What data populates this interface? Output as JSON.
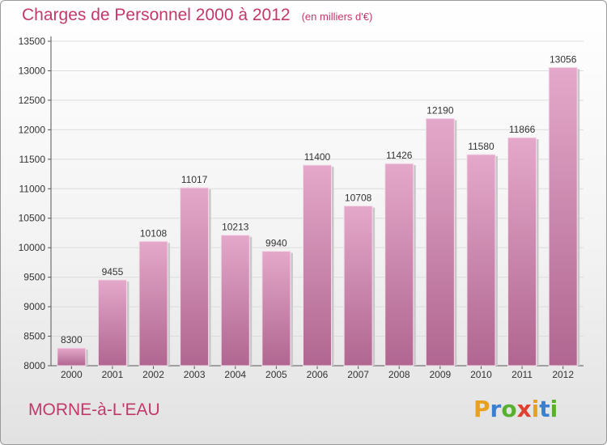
{
  "header": {
    "title": "Charges de Personnel 2000 à 2012",
    "subtitle": "(en milliers d'€)"
  },
  "footer": {
    "commune": "MORNE-à-L'EAU",
    "logo_letters": [
      {
        "ch": "P",
        "color": "#e8a020"
      },
      {
        "ch": "r",
        "color": "#3a7fd0"
      },
      {
        "ch": "o",
        "color": "#58b030"
      },
      {
        "ch": "x",
        "color": "#e04030"
      },
      {
        "ch": "i",
        "color": "#e8a020"
      },
      {
        "ch": "t",
        "color": "#3a7fd0"
      },
      {
        "ch": "i",
        "color": "#58b030"
      }
    ]
  },
  "colors": {
    "bar_top": "#e4a8ca",
    "bar_bottom": "#b06690",
    "title": "#c2386a"
  },
  "chart_data": {
    "type": "bar",
    "title": "Charges de Personnel 2000 à 2012",
    "subtitle": "(en milliers d'€)",
    "xlabel": "",
    "ylabel": "",
    "categories": [
      "2000",
      "2001",
      "2002",
      "2003",
      "2004",
      "2005",
      "2006",
      "2007",
      "2008",
      "2009",
      "2010",
      "2011",
      "2012"
    ],
    "values": [
      8300,
      9455,
      10108,
      11017,
      10213,
      9940,
      11400,
      10708,
      11426,
      12190,
      11580,
      11866,
      13056
    ],
    "ylim": [
      8000,
      13500
    ],
    "yticks": [
      8000,
      8500,
      9000,
      9500,
      10000,
      10500,
      11000,
      11500,
      12000,
      12500,
      13000,
      13500
    ],
    "grid": true,
    "legend": "none"
  }
}
